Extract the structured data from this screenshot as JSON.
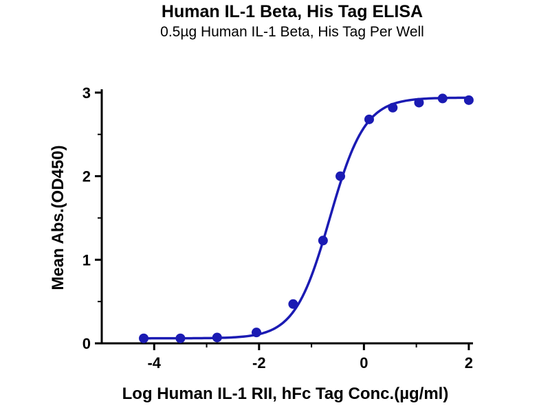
{
  "page": {
    "background": "#ffffff"
  },
  "chart_data": {
    "type": "scatter",
    "title": "Human IL-1 Beta, His Tag ELISA",
    "subtitle": "0.5µg Human IL-1 Beta, His Tag Per Well",
    "xlabel": "Log Human IL-1 RII, hFc Tag Conc.(µg/ml)",
    "ylabel": "Mean Abs.(OD450)",
    "xlim": [
      -5.0,
      2.08
    ],
    "ylim": [
      0,
      3.04
    ],
    "x_major_ticks": [
      -4,
      -2,
      0,
      2
    ],
    "x_minor_ticks": [
      -3,
      -1,
      1
    ],
    "y_major_ticks": [
      0,
      1,
      2,
      3
    ],
    "y_minor_ticks": [
      0.5,
      1.5,
      2.5
    ],
    "grid": false,
    "legend": "none",
    "series": [
      {
        "name": "Human IL-1 RII, hFc Tag",
        "x": [
          -4.2,
          -3.5,
          -2.8,
          -2.05,
          -1.35,
          -0.78,
          -0.45,
          0.1,
          0.55,
          1.05,
          1.5,
          2.0
        ],
        "y": [
          0.06,
          0.06,
          0.07,
          0.13,
          0.47,
          1.23,
          2.0,
          2.68,
          2.82,
          2.88,
          2.93,
          2.91
        ]
      }
    ],
    "fit": {
      "model": "4PL",
      "bottom": 0.06,
      "top": 2.94,
      "logEC50": -0.65,
      "hill": 1.3,
      "curve_x_start": -4.25,
      "curve_x_end": 2.0
    },
    "colors": {
      "curve": "#1b1bb3",
      "point": "#1b1bb3",
      "axis": "#000000"
    }
  }
}
